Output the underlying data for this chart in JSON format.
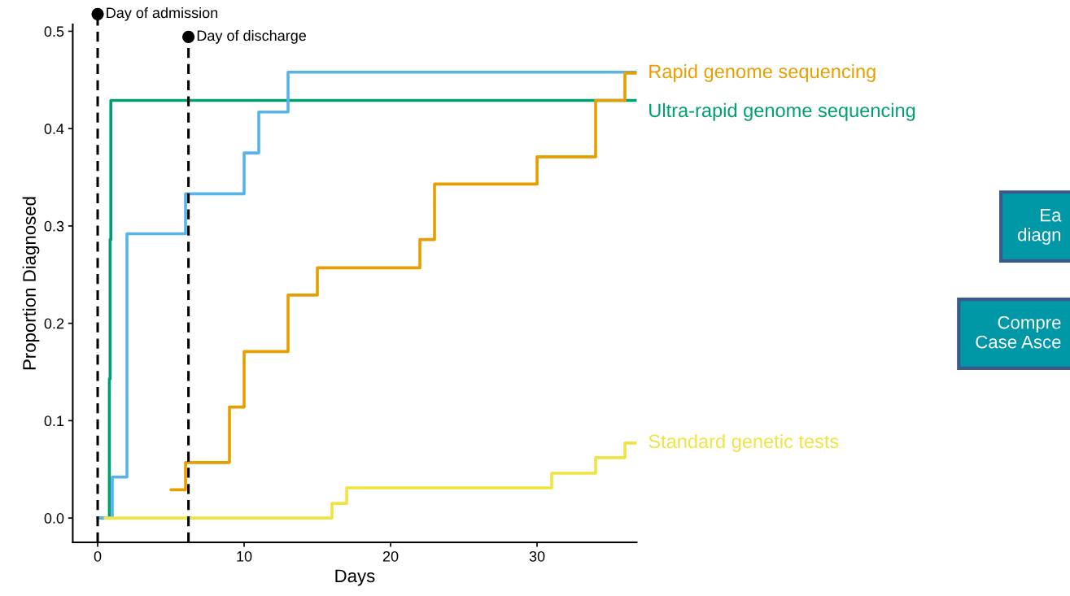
{
  "chart_data": {
    "type": "step",
    "xlabel": "Days",
    "ylabel": "Proportion Diagnosed",
    "xlim": [
      -1.7,
      36.8
    ],
    "xticks": [
      0,
      10,
      20,
      30
    ],
    "ylim": [
      -0.025,
      0.507
    ],
    "yticks": [
      {
        "value": 0,
        "label": "0.0"
      },
      {
        "value": 0.1,
        "label": "0.1"
      },
      {
        "value": 0.2,
        "label": "0.2"
      },
      {
        "value": 0.3,
        "label": "0.3"
      },
      {
        "value": 0.4,
        "label": "0.4"
      },
      {
        "value": 0.5,
        "label": "0.5"
      }
    ],
    "grid": false,
    "legend": false,
    "line_style": "solid",
    "marker": "none",
    "series": [
      {
        "name": "Ultra-rapid genome sequencing",
        "color": "#009e73",
        "x": [
          0,
          0.8,
          0.85,
          0.9,
          36.8
        ],
        "values": [
          0,
          0.143,
          0.286,
          0.429,
          0.429
        ]
      },
      {
        "color": "#56b4e9",
        "x": [
          0,
          1,
          2,
          6,
          10,
          11,
          13,
          36.8
        ],
        "values": [
          0,
          0.042,
          0.292,
          0.333,
          0.375,
          0.417,
          0.458,
          0.458
        ]
      },
      {
        "name": "Rapid genome sequencing",
        "color": "#e69f00",
        "x": [
          5,
          6,
          9,
          10,
          13,
          15,
          22,
          23,
          30,
          34,
          36,
          36.8
        ],
        "values": [
          0.029,
          0.057,
          0.114,
          0.171,
          0.229,
          0.257,
          0.286,
          0.343,
          0.371,
          0.429,
          0.457,
          0.457
        ]
      },
      {
        "name": "Standard genetic tests",
        "color": "#f0e442",
        "x": [
          0.5,
          16,
          17,
          31,
          34,
          36,
          36.8
        ],
        "values": [
          0,
          0.015,
          0.031,
          0.046,
          0.062,
          0.077,
          0.077
        ]
      }
    ],
    "ref_lines": [
      {
        "axis": "x",
        "value": 0,
        "label": "Day of admission",
        "color": "#000000",
        "line_style": "dashed"
      },
      {
        "axis": "x",
        "value": 6.2,
        "label": "Day of discharge",
        "color": "#000000",
        "line_style": "dashed"
      }
    ],
    "annotations": [
      "Ea\ndiagn",
      "Compre\nCase Asce"
    ]
  }
}
